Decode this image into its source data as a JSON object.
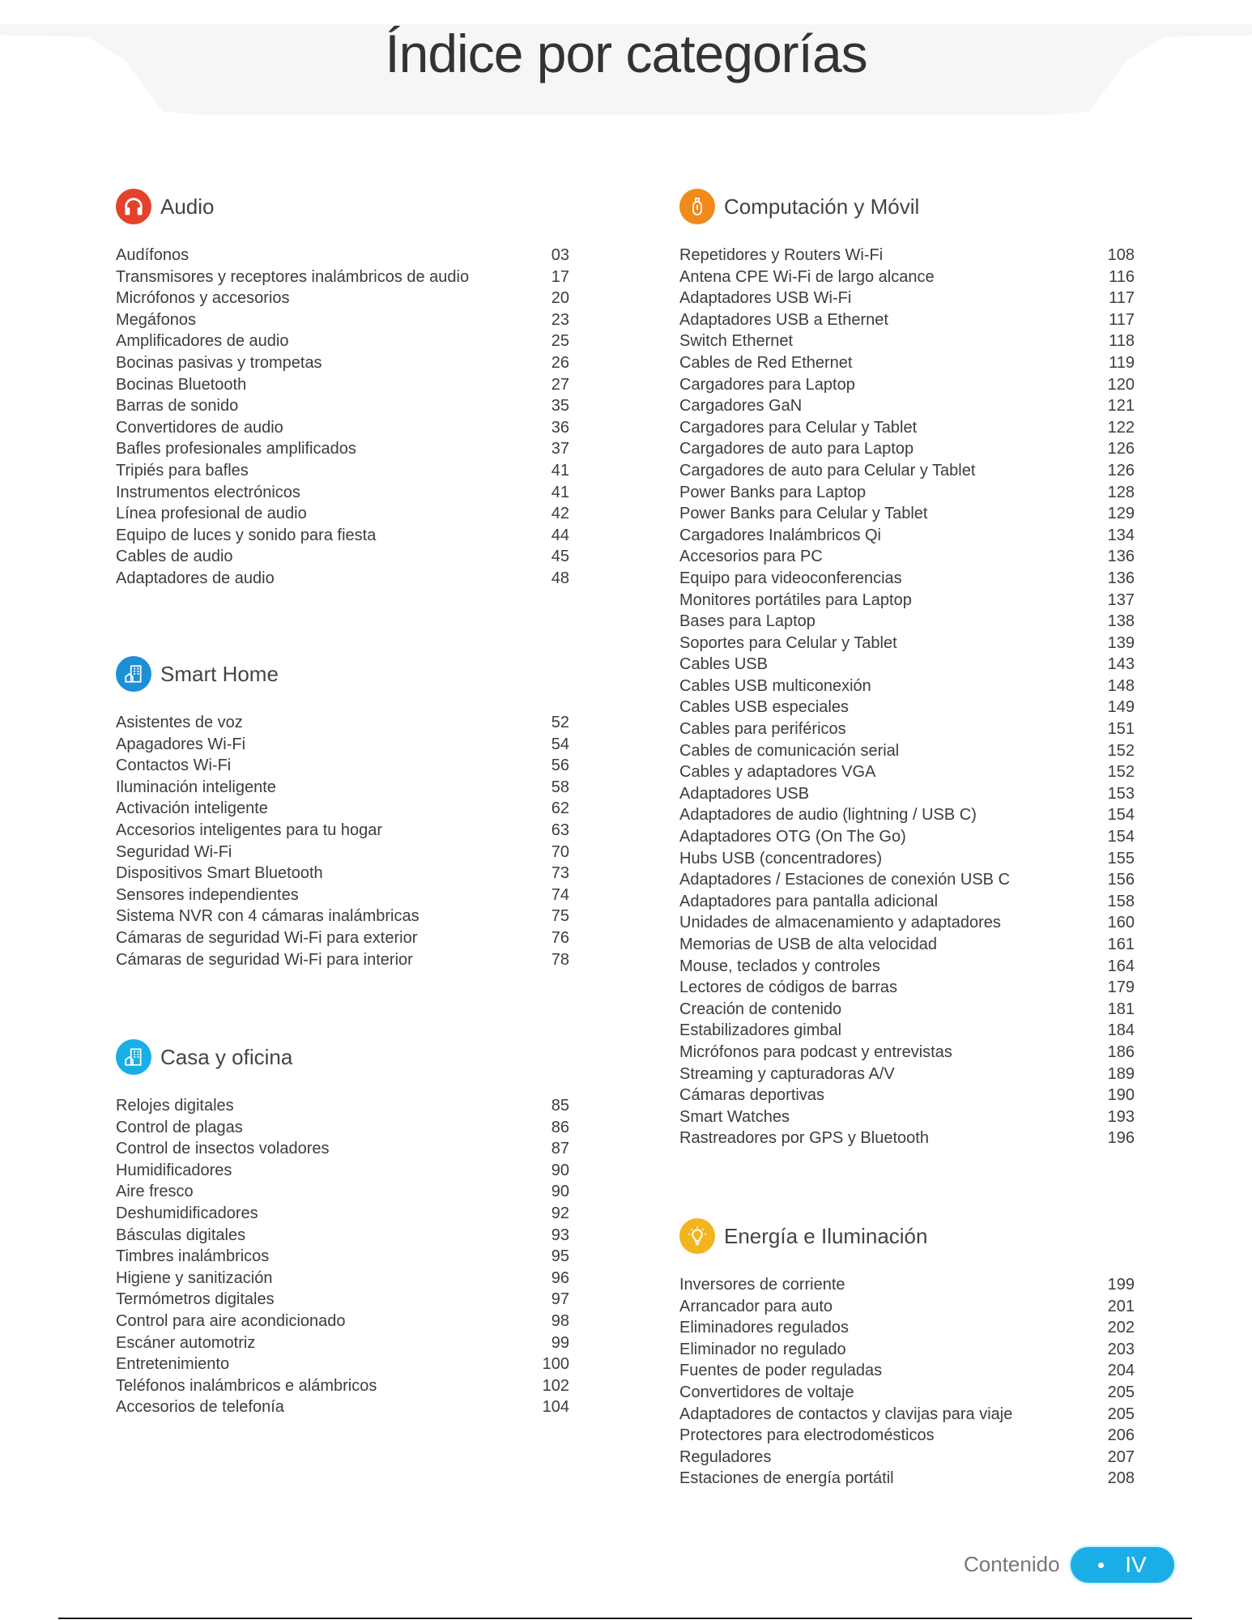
{
  "title": "Índice por categorías",
  "colors": {
    "audio": "#e2432a",
    "smart_home": "#1d8fd6",
    "casa": "#1aaee6",
    "computacion": "#f08a1c",
    "energia": "#f2b51e",
    "accent": "#1aaee6"
  },
  "sections": [
    {
      "key": "audio",
      "title": "Audio",
      "icon": "headphones-icon",
      "items": [
        [
          "Audífonos",
          "03"
        ],
        [
          "Transmisores y receptores inalámbricos de audio",
          "17"
        ],
        [
          "Micrófonos y accesorios",
          "20"
        ],
        [
          "Megáfonos",
          "23"
        ],
        [
          "Amplificadores de audio",
          "25"
        ],
        [
          "Bocinas pasivas y trompetas",
          "26"
        ],
        [
          "Bocinas Bluetooth",
          "27"
        ],
        [
          "Barras de sonido",
          "35"
        ],
        [
          "Convertidores de audio",
          "36"
        ],
        [
          "Bafles profesionales amplificados",
          "37"
        ],
        [
          "Tripiés para bafles",
          "41"
        ],
        [
          "Instrumentos electrónicos",
          "41"
        ],
        [
          "Línea profesional de audio",
          "42"
        ],
        [
          "Equipo de luces y sonido para fiesta",
          "44"
        ],
        [
          "Cables de audio",
          "45"
        ],
        [
          "Adaptadores de audio",
          "48"
        ]
      ]
    },
    {
      "key": "smart_home",
      "title": "Smart Home",
      "icon": "smart-building-icon",
      "items": [
        [
          "Asistentes de voz",
          "52"
        ],
        [
          "Apagadores Wi-Fi",
          "54"
        ],
        [
          "Contactos Wi-Fi",
          "56"
        ],
        [
          "Iluminación inteligente",
          "58"
        ],
        [
          "Activación inteligente",
          "62"
        ],
        [
          "Accesorios inteligentes para tu hogar",
          "63"
        ],
        [
          "Seguridad Wi-Fi",
          "70"
        ],
        [
          "Dispositivos Smart Bluetooth",
          "73"
        ],
        [
          "Sensores independientes",
          "74"
        ],
        [
          "Sistema NVR con 4 cámaras inalámbricas",
          "75"
        ],
        [
          "Cámaras de seguridad Wi-Fi para exterior",
          "76"
        ],
        [
          "Cámaras de seguridad Wi-Fi para interior",
          "78"
        ]
      ]
    },
    {
      "key": "casa",
      "title": "Casa y oficina",
      "icon": "building-icon",
      "items": [
        [
          "Relojes digitales",
          "85"
        ],
        [
          "Control de plagas",
          "86"
        ],
        [
          "Control de insectos voladores",
          "87"
        ],
        [
          "Humidificadores",
          "90"
        ],
        [
          "Aire fresco",
          "90"
        ],
        [
          "Deshumidificadores",
          "92"
        ],
        [
          "Básculas digitales",
          "93"
        ],
        [
          "Timbres inalámbricos",
          "95"
        ],
        [
          "Higiene y sanitización",
          "96"
        ],
        [
          "Termómetros digitales",
          "97"
        ],
        [
          "Control para aire acondicionado",
          "98"
        ],
        [
          "Escáner automotriz",
          "99"
        ],
        [
          "Entretenimiento",
          "100"
        ],
        [
          "Teléfonos inalámbricos e alámbricos",
          "102"
        ],
        [
          "Accesorios de telefonía",
          "104"
        ]
      ]
    },
    {
      "key": "computacion",
      "title": "Computación y Móvil",
      "icon": "usb-drive-icon",
      "items": [
        [
          "Repetidores y Routers Wi-Fi",
          "108"
        ],
        [
          "Antena CPE Wi-Fi de largo alcance",
          "116"
        ],
        [
          "Adaptadores USB Wi-Fi",
          "117"
        ],
        [
          "Adaptadores USB a Ethernet",
          "117"
        ],
        [
          "Switch Ethernet",
          "118"
        ],
        [
          "Cables de Red Ethernet",
          "119"
        ],
        [
          "Cargadores para Laptop",
          "120"
        ],
        [
          "Cargadores GaN",
          "121"
        ],
        [
          "Cargadores para Celular y Tablet",
          "122"
        ],
        [
          "Cargadores de auto para Laptop",
          "126"
        ],
        [
          "Cargadores de auto para Celular y Tablet",
          "126"
        ],
        [
          "Power Banks para Laptop",
          "128"
        ],
        [
          "Power Banks para Celular y Tablet",
          "129"
        ],
        [
          "Cargadores Inalámbricos Qi",
          "134"
        ],
        [
          "Accesorios para PC",
          "136"
        ],
        [
          "Equipo para videoconferencias",
          "136"
        ],
        [
          "Monitores portátiles para Laptop",
          "137"
        ],
        [
          "Bases para Laptop",
          "138"
        ],
        [
          "Soportes para Celular y Tablet",
          "139"
        ],
        [
          "Cables USB",
          "143"
        ],
        [
          "Cables USB multiconexión",
          "148"
        ],
        [
          "Cables USB especiales",
          "149"
        ],
        [
          "Cables para periféricos",
          "151"
        ],
        [
          "Cables de comunicación serial",
          "152"
        ],
        [
          "Cables y adaptadores VGA",
          "152"
        ],
        [
          "Adaptadores USB",
          "153"
        ],
        [
          "Adaptadores de audio (lightning / USB C)",
          "154"
        ],
        [
          "Adaptadores OTG (On The Go)",
          "154"
        ],
        [
          "Hubs USB (concentradores)",
          "155"
        ],
        [
          "Adaptadores / Estaciones de conexión USB C",
          "156"
        ],
        [
          "Adaptadores para pantalla adicional",
          "158"
        ],
        [
          "Unidades de almacenamiento y adaptadores",
          "160"
        ],
        [
          "Memorias de USB de alta velocidad",
          "161"
        ],
        [
          "Mouse, teclados y controles",
          "164"
        ],
        [
          "Lectores de códigos de barras",
          "179"
        ],
        [
          "Creación de contenido",
          "181"
        ],
        [
          "Estabilizadores gimbal",
          "184"
        ],
        [
          "Micrófonos para podcast y entrevistas",
          "186"
        ],
        [
          "Streaming y capturadoras A/V",
          "189"
        ],
        [
          "Cámaras deportivas",
          "190"
        ],
        [
          "Smart Watches",
          "193"
        ],
        [
          "Rastreadores por GPS y Bluetooth",
          "196"
        ]
      ]
    },
    {
      "key": "energia",
      "title": "Energía e Iluminación",
      "icon": "lightbulb-icon",
      "items": [
        [
          "Inversores de corriente",
          "199"
        ],
        [
          "Arrancador para auto",
          "201"
        ],
        [
          "Eliminadores regulados",
          "202"
        ],
        [
          "Eliminador no regulado",
          "203"
        ],
        [
          "Fuentes de poder reguladas",
          "204"
        ],
        [
          "Convertidores de voltaje",
          "205"
        ],
        [
          "Adaptadores de contactos y clavijas para viaje",
          "205"
        ],
        [
          "Protectores para electrodomésticos",
          "206"
        ],
        [
          "Reguladores",
          "207"
        ],
        [
          "Estaciones de energía portátil",
          "208"
        ]
      ]
    }
  ],
  "footer": {
    "label": "Contenido",
    "page": "IV"
  }
}
